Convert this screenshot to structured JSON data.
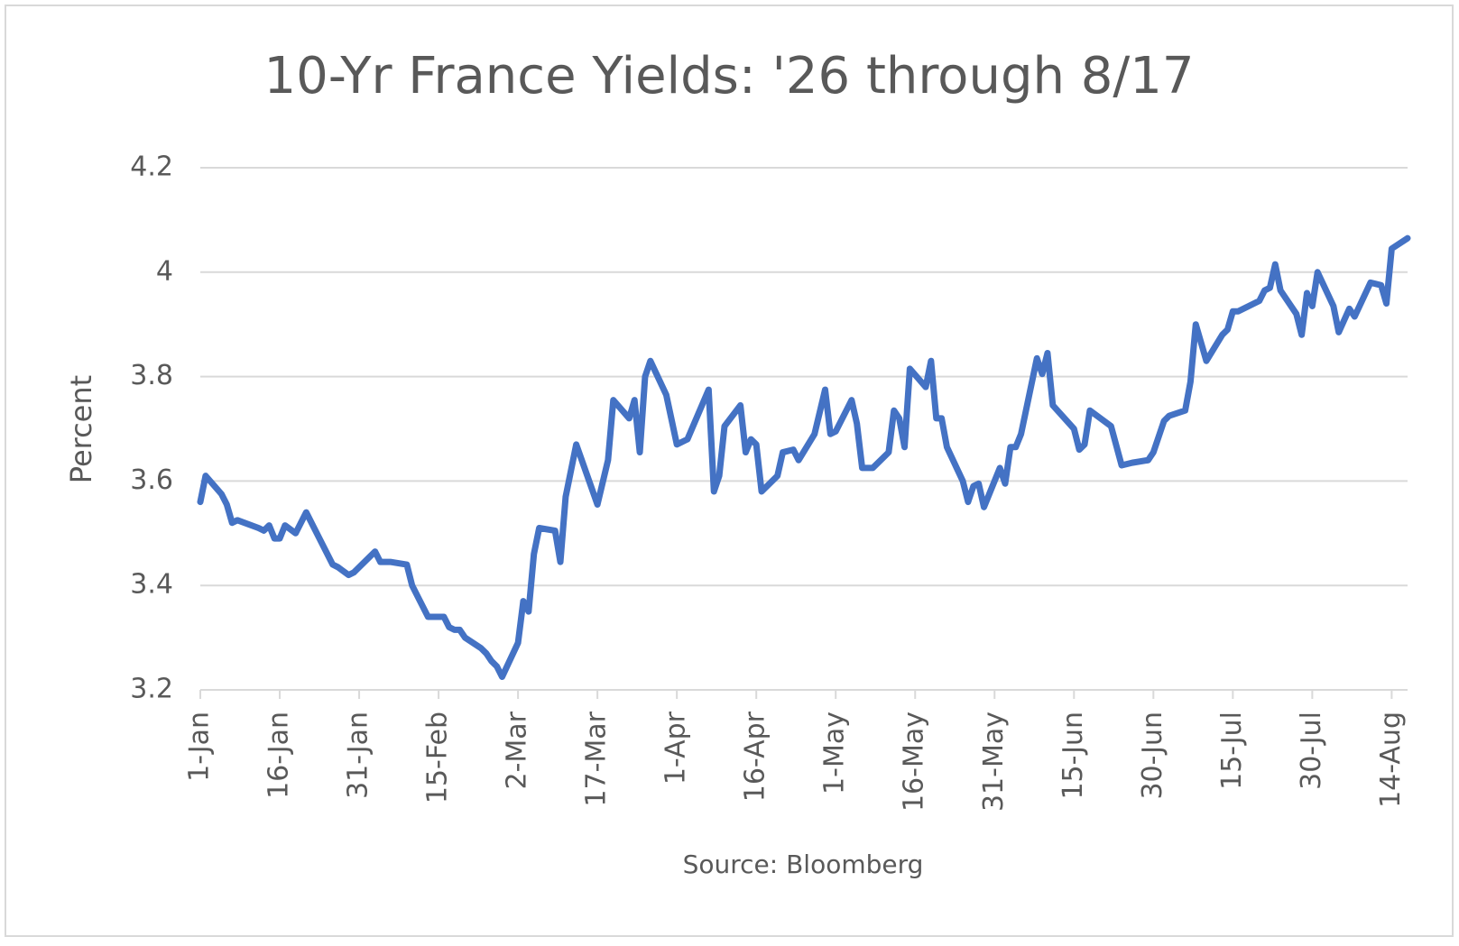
{
  "chart_data": {
    "type": "line",
    "title": "10-Yr France Yields: '26 through 8/17",
    "y_label": "Percent",
    "source": "Source: Bloomberg",
    "grid": true,
    "xlim": [
      "1-Jan",
      "17-Aug"
    ],
    "xticks": [
      "1-Jan",
      "16-Jan",
      "31-Jan",
      "15-Feb",
      "2-Mar",
      "17-Mar",
      "1-Apr",
      "16-Apr",
      "1-May",
      "16-May",
      "31-May",
      "15-Jun",
      "30-Jun",
      "15-Jul",
      "30-Jul",
      "14-Aug"
    ],
    "ylim": [
      3.2,
      4.2
    ],
    "yticks": [
      3.2,
      3.4,
      3.6,
      3.8,
      4,
      4.2
    ],
    "x": [
      "1-Jan",
      "2-Jan",
      "5-Jan",
      "6-Jan",
      "7-Jan",
      "8-Jan",
      "12-Jan",
      "13-Jan",
      "14-Jan",
      "15-Jan",
      "16-Jan",
      "17-Jan",
      "19-Jan",
      "21-Jan",
      "23-Jan",
      "26-Jan",
      "27-Jan",
      "29-Jan",
      "30-Jan",
      "2-Feb",
      "3-Feb",
      "4-Feb",
      "6-Feb",
      "9-Feb",
      "10-Feb",
      "11-Feb",
      "13-Feb",
      "16-Feb",
      "17-Feb",
      "18-Feb",
      "19-Feb",
      "20-Feb",
      "23-Feb",
      "24-Feb",
      "25-Feb",
      "26-Feb",
      "27-Feb",
      "2-Mar",
      "3-Mar",
      "4-Mar",
      "5-Mar",
      "6-Mar",
      "9-Mar",
      "10-Mar",
      "11-Mar",
      "13-Mar",
      "17-Mar",
      "19-Mar",
      "20-Mar",
      "23-Mar",
      "24-Mar",
      "25-Mar",
      "26-Mar",
      "27-Mar",
      "30-Mar",
      "1-Apr",
      "3-Apr",
      "7-Apr",
      "8-Apr",
      "9-Apr",
      "10-Apr",
      "13-Apr",
      "14-Apr",
      "15-Apr",
      "16-Apr",
      "17-Apr",
      "20-Apr",
      "21-Apr",
      "23-Apr",
      "24-Apr",
      "27-Apr",
      "29-Apr",
      "30-Apr",
      "1-May",
      "4-May",
      "5-May",
      "6-May",
      "8-May",
      "11-May",
      "12-May",
      "13-May",
      "14-May",
      "15-May",
      "18-May",
      "19-May",
      "20-May",
      "21-May",
      "22-May",
      "25-May",
      "26-May",
      "27-May",
      "28-May",
      "29-May",
      "1-Jun",
      "2-Jun",
      "3-Jun",
      "4-Jun",
      "5-Jun",
      "8-Jun",
      "9-Jun",
      "10-Jun",
      "11-Jun",
      "15-Jun",
      "16-Jun",
      "17-Jun",
      "18-Jun",
      "22-Jun",
      "24-Jun",
      "26-Jun",
      "29-Jun",
      "30-Jun",
      "2-Jul",
      "3-Jul",
      "6-Jul",
      "7-Jul",
      "8-Jul",
      "10-Jul",
      "13-Jul",
      "14-Jul",
      "15-Jul",
      "16-Jul",
      "20-Jul",
      "21-Jul",
      "22-Jul",
      "23-Jul",
      "24-Jul",
      "27-Jul",
      "28-Jul",
      "29-Jul",
      "30-Jul",
      "31-Jul",
      "3-Aug",
      "4-Aug",
      "6-Aug",
      "7-Aug",
      "10-Aug",
      "12-Aug",
      "13-Aug",
      "14-Aug",
      "17-Aug"
    ],
    "series": [
      {
        "name": "10-Yr France Yield",
        "color": "#4472c4",
        "values": [
          3.56,
          3.61,
          3.575,
          3.555,
          3.52,
          3.525,
          3.51,
          3.505,
          3.515,
          3.49,
          3.49,
          3.515,
          3.5,
          3.54,
          3.5,
          3.44,
          3.435,
          3.42,
          3.425,
          3.455,
          3.465,
          3.445,
          3.445,
          3.44,
          3.4,
          3.38,
          3.34,
          3.34,
          3.32,
          3.315,
          3.315,
          3.3,
          3.28,
          3.27,
          3.255,
          3.245,
          3.225,
          3.29,
          3.37,
          3.35,
          3.46,
          3.51,
          3.505,
          3.445,
          3.57,
          3.67,
          3.555,
          3.64,
          3.755,
          3.72,
          3.755,
          3.655,
          3.8,
          3.83,
          3.765,
          3.67,
          3.68,
          3.775,
          3.58,
          3.61,
          3.705,
          3.745,
          3.655,
          3.68,
          3.67,
          3.58,
          3.61,
          3.655,
          3.66,
          3.64,
          3.69,
          3.775,
          3.69,
          3.695,
          3.755,
          3.71,
          3.625,
          3.625,
          3.655,
          3.735,
          3.72,
          3.665,
          3.815,
          3.78,
          3.83,
          3.72,
          3.72,
          3.665,
          3.6,
          3.56,
          3.59,
          3.595,
          3.55,
          3.625,
          3.595,
          3.665,
          3.665,
          3.69,
          3.835,
          3.805,
          3.845,
          3.745,
          3.7,
          3.66,
          3.67,
          3.735,
          3.705,
          3.63,
          3.635,
          3.64,
          3.655,
          3.715,
          3.725,
          3.735,
          3.79,
          3.9,
          3.83,
          3.88,
          3.89,
          3.925,
          3.925,
          3.945,
          3.965,
          3.97,
          4.015,
          3.965,
          3.92,
          3.88,
          3.96,
          3.935,
          4.0,
          3.935,
          3.885,
          3.93,
          3.915,
          3.98,
          3.975,
          3.94,
          4.045,
          4.065
        ]
      }
    ]
  }
}
